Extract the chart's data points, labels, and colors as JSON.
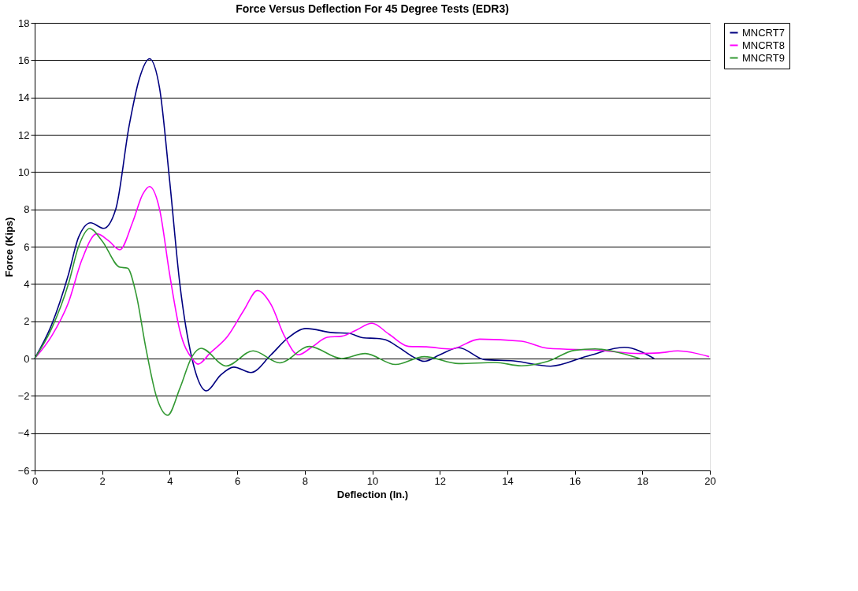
{
  "chart_data": {
    "type": "line",
    "title": "Force Versus Deflection For 45 Degree Tests (EDR3)",
    "xlabel": "Deflection (In.)",
    "ylabel": "Force (Kips)",
    "xlim": [
      0,
      20
    ],
    "xticks": [
      0,
      2,
      4,
      6,
      8,
      10,
      12,
      14,
      16,
      18,
      20
    ],
    "ylim": [
      -6,
      18
    ],
    "yticks": [
      -6,
      -4,
      -2,
      0,
      2,
      4,
      6,
      8,
      10,
      12,
      14,
      16,
      18
    ],
    "grid": "y",
    "legend": "right",
    "marker": "none",
    "line_style": "solid",
    "series": [
      {
        "name": "MNCRT7",
        "color": "#000080",
        "x": [
          0,
          0.5,
          1,
          1.3,
          1.66,
          2.04,
          2.4,
          2.8,
          3.1,
          3.4,
          3.7,
          4.0,
          4.3,
          4.66,
          5.09,
          5.5,
          5.9,
          6.41,
          7.0,
          7.5,
          8.04,
          8.82,
          9.3,
          9.75,
          10.14,
          10.4,
          10.77,
          11.2,
          11.54,
          12.0,
          12.56,
          13.33,
          14.19,
          15.28,
          16.37,
          17.46,
          18.35
        ],
        "values": [
          0,
          1.8,
          4.5,
          6.5,
          7.28,
          6.98,
          8.0,
          12.5,
          15.0,
          16.08,
          14.5,
          9.5,
          4.0,
          0,
          -1.73,
          -0.9,
          -0.46,
          -0.75,
          0.2,
          1.1,
          1.61,
          1.39,
          1.35,
          1.11,
          1.08,
          1.0,
          0.62,
          0.1,
          -0.15,
          0.2,
          0.58,
          -0.06,
          -0.13,
          -0.41,
          0.13,
          0.6,
          0
        ]
      },
      {
        "name": "MNCRT8",
        "color": "#ff00ff",
        "x": [
          0,
          0.5,
          1,
          1.4,
          1.84,
          2.2,
          2.52,
          2.9,
          3.2,
          3.4,
          3.7,
          4.0,
          4.3,
          4.66,
          4.84,
          5.2,
          5.71,
          6.2,
          6.6,
          7.0,
          7.4,
          7.81,
          8.2,
          8.67,
          9.1,
          9.5,
          9.99,
          10.5,
          11.08,
          11.6,
          12.32,
          13.18,
          14.42,
          15.2,
          16.76,
          17.92,
          18.5,
          19.05,
          19.98
        ],
        "values": [
          0,
          1.2,
          3.0,
          5.3,
          6.69,
          6.3,
          5.83,
          7.3,
          8.8,
          9.22,
          8.0,
          4.5,
          1.5,
          0,
          -0.3,
          0.3,
          1.18,
          2.6,
          3.65,
          2.9,
          1.2,
          0.2,
          0.6,
          1.14,
          1.2,
          1.5,
          1.89,
          1.3,
          0.65,
          0.63,
          0.51,
          1.04,
          0.93,
          0.55,
          0.44,
          0.27,
          0.3,
          0.41,
          0.1
        ]
      },
      {
        "name": "MNCRT9",
        "color": "#339933",
        "x": [
          0,
          0.5,
          1,
          1.3,
          1.63,
          2.0,
          2.52,
          2.75,
          3.0,
          3.3,
          3.6,
          3.94,
          4.3,
          4.66,
          4.93,
          5.67,
          6.47,
          7.26,
          8.14,
          9.09,
          9.79,
          10.69,
          11.54,
          12.56,
          13.64,
          14.42,
          15.2,
          15.98,
          16.6,
          17.1,
          17.92
        ],
        "values": [
          0,
          1.6,
          4.0,
          6.0,
          6.97,
          6.3,
          4.9,
          4.85,
          3.5,
          0.5,
          -2.0,
          -3.04,
          -1.6,
          0.1,
          0.55,
          -0.4,
          0.41,
          -0.23,
          0.65,
          0,
          0.27,
          -0.32,
          0.1,
          -0.27,
          -0.21,
          -0.39,
          -0.15,
          0.44,
          0.52,
          0.4,
          0
        ]
      }
    ]
  }
}
